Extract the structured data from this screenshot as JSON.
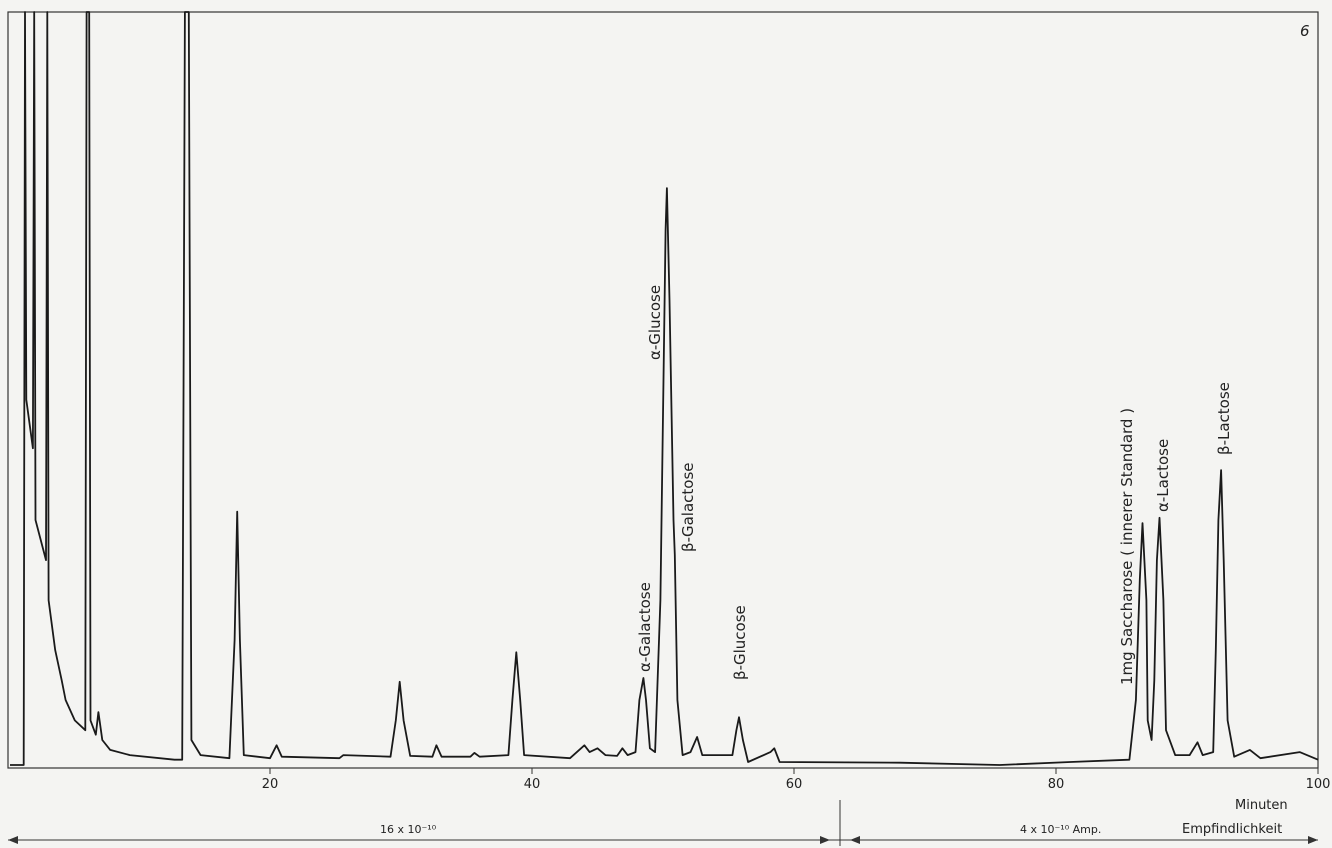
{
  "chart_data": {
    "type": "line",
    "page_number": "6",
    "x_label": "Minuten",
    "sensitivity_label": "Empfindlichkeit",
    "sensitivity_ranges": [
      "16 x 10⁻¹⁰",
      "4 x 10⁻¹⁰ Amp."
    ],
    "annotations": [
      "α-Galactose",
      "α-Glucose",
      "β-Galactose",
      "β-Glucose",
      "1mg Saccharose ( innerer Standard )",
      "α-Lactose",
      "β-Lactose"
    ],
    "xlim": [
      0,
      100
    ],
    "xticks": [
      20,
      40,
      60,
      80,
      100
    ],
    "ylim": [
      0,
      100
    ],
    "color": "#1a1a1a",
    "x": [
      0.15,
      1.2,
      1.3,
      1.4,
      1.9,
      2.0,
      2.1,
      2.9,
      3.0,
      3.1,
      3.6,
      4.1,
      4.4,
      5.1,
      5.9,
      6.0,
      6.2,
      6.3,
      6.7,
      6.9,
      7.2,
      7.8,
      9.3,
      12.7,
      13.3,
      13.5,
      13.8,
      14.0,
      14.7,
      16.9,
      17.3,
      17.5,
      17.7,
      18.0,
      20.0,
      20.5,
      20.9,
      25.3,
      25.6,
      29.2,
      29.6,
      29.9,
      30.2,
      30.7,
      32.4,
      32.7,
      33.1,
      35.3,
      35.6,
      36.0,
      38.2,
      38.5,
      38.8,
      39.1,
      39.4,
      42.9,
      44.0,
      44.4,
      45.0,
      45.6,
      46.5,
      46.9,
      47.3,
      47.9,
      48.2,
      48.5,
      48.7,
      49.0,
      49.4,
      49.8,
      50.2,
      50.3,
      50.5,
      50.8,
      50.9,
      51.1,
      51.5,
      52.1,
      52.6,
      53.0,
      55.3,
      55.6,
      55.8,
      56.1,
      56.5,
      58.2,
      58.5,
      58.9,
      68.1,
      75.7,
      81.1,
      85.6,
      86.1,
      86.4,
      86.6,
      86.9,
      87.0,
      87.3,
      87.5,
      87.7,
      87.9,
      88.2,
      88.4,
      89.1,
      90.2,
      90.8,
      91.2,
      92.0,
      92.2,
      92.4,
      92.6,
      92.8,
      93.1,
      93.6,
      94.8,
      95.6,
      98.6,
      100
    ],
    "values": [
      0.4,
      0.4,
      100,
      48.7,
      42.3,
      100,
      32.8,
      27.5,
      100,
      22.2,
      15.6,
      11.6,
      9.0,
      6.3,
      5.0,
      100,
      100,
      6.3,
      4.4,
      7.4,
      3.7,
      2.4,
      1.7,
      1.1,
      1.1,
      100,
      100,
      3.7,
      1.7,
      1.3,
      16.9,
      33.9,
      16.9,
      1.7,
      1.3,
      3.0,
      1.5,
      1.3,
      1.7,
      1.5,
      6.3,
      11.4,
      6.3,
      1.6,
      1.5,
      3.0,
      1.5,
      1.5,
      2.0,
      1.5,
      1.7,
      9.0,
      15.3,
      9.0,
      1.7,
      1.3,
      3.0,
      2.1,
      2.6,
      1.7,
      1.6,
      2.6,
      1.7,
      2.1,
      9.0,
      11.9,
      9.0,
      2.6,
      2.1,
      22.2,
      71.2,
      76.7,
      61.9,
      32.8,
      28.2,
      9.0,
      1.7,
      2.1,
      4.1,
      1.7,
      1.7,
      5.0,
      6.7,
      3.7,
      0.8,
      2.1,
      2.6,
      0.8,
      0.7,
      0.4,
      0.8,
      1.1,
      9.0,
      24.9,
      32.4,
      22.2,
      6.3,
      3.7,
      11.6,
      27.5,
      33.1,
      22.2,
      5.0,
      1.7,
      1.7,
      3.4,
      1.7,
      2.1,
      15.6,
      32.8,
      39.4,
      27.5,
      6.3,
      1.5,
      2.4,
      1.3,
      2.1,
      1.1
    ]
  }
}
